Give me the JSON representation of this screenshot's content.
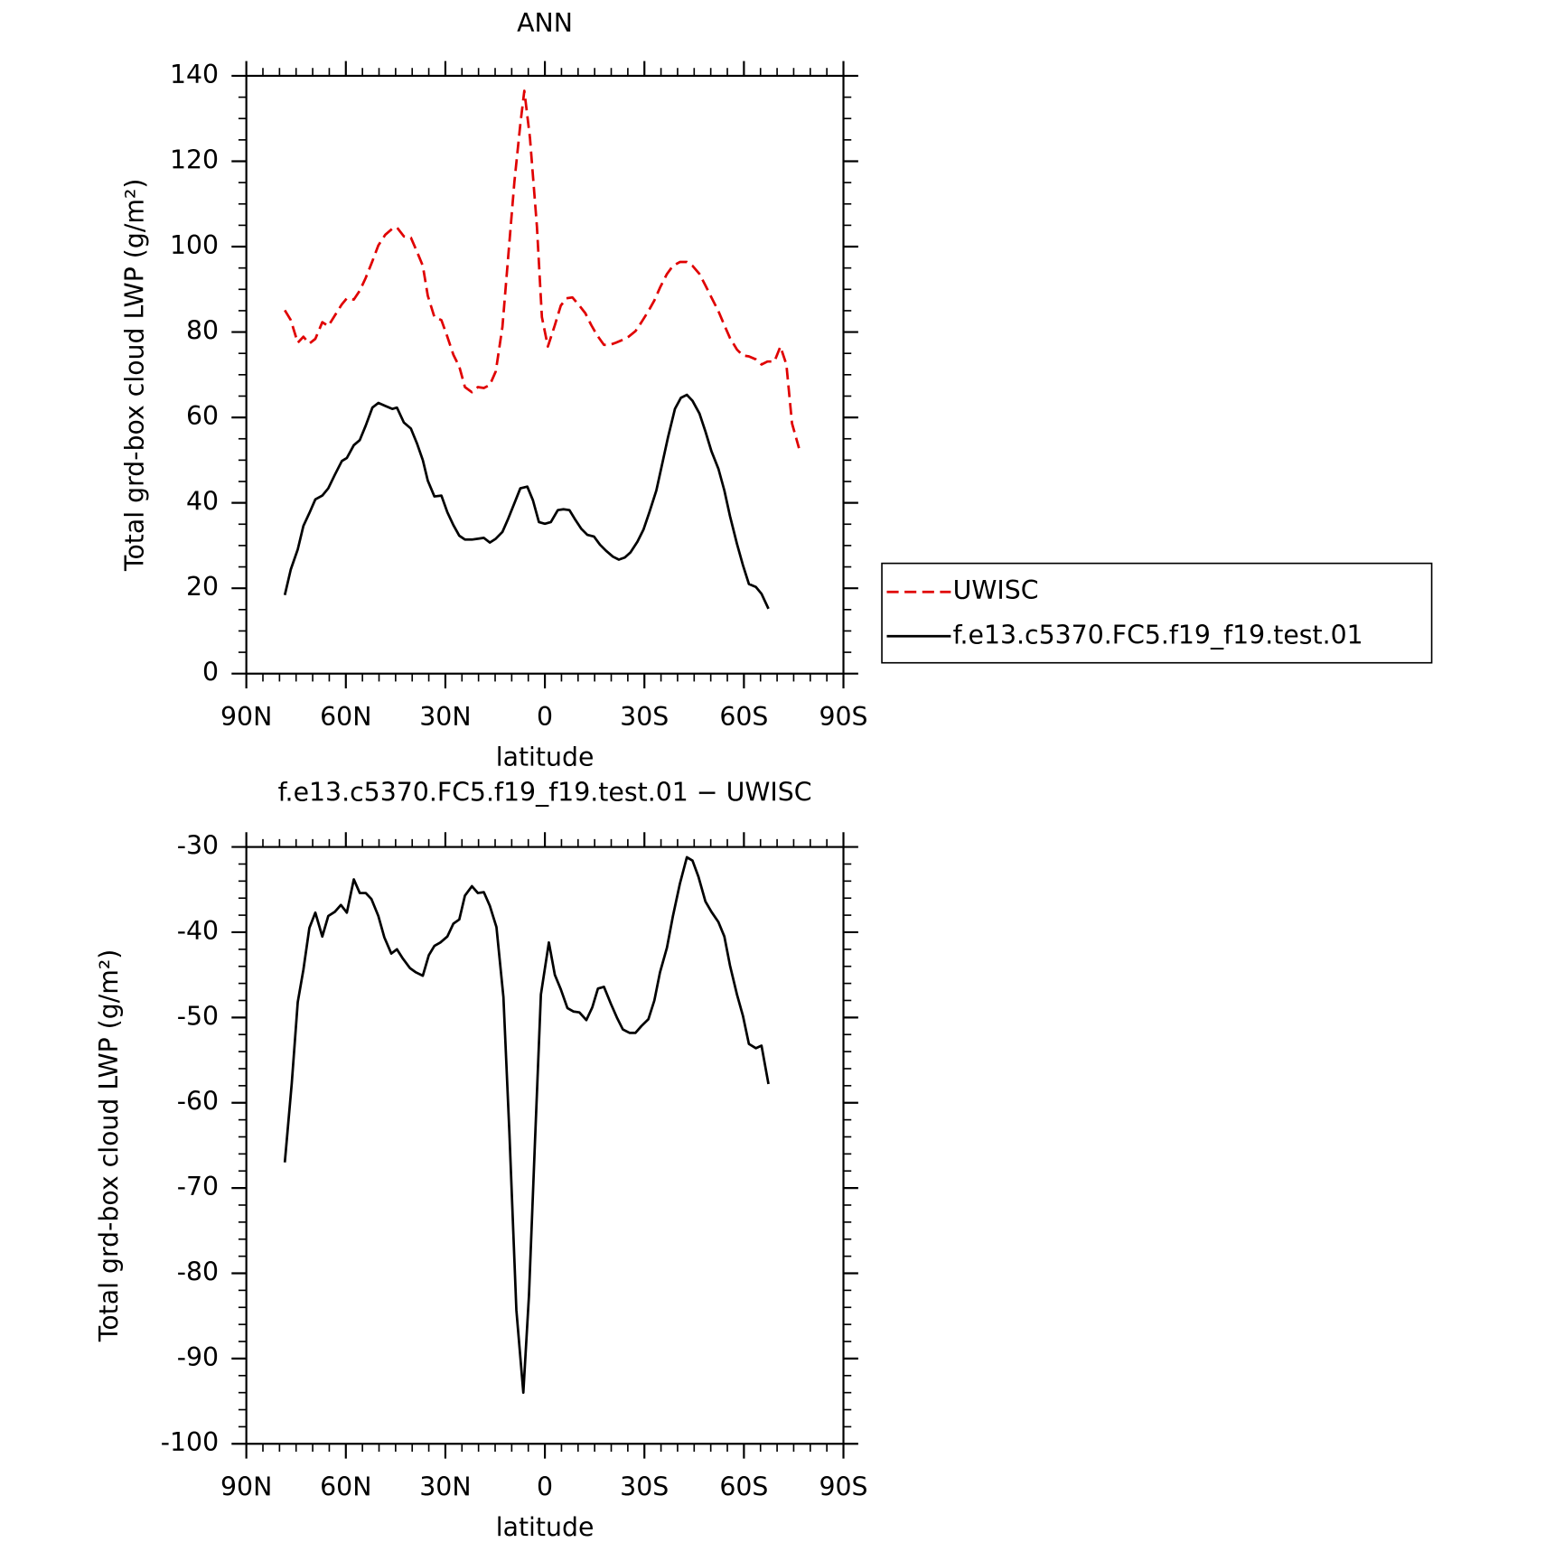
{
  "chart_data": [
    {
      "type": "line",
      "title": "ANN",
      "x_label": "latitude",
      "y_label": "Total grd-box cloud LWP (g/m²)",
      "xlim": [
        90,
        -90
      ],
      "xticks": [
        {
          "value": 90,
          "label": "90N"
        },
        {
          "value": 60,
          "label": "60N"
        },
        {
          "value": 30,
          "label": "30N"
        },
        0,
        {
          "value": -30,
          "label": "30S"
        },
        {
          "value": -60,
          "label": "60S"
        },
        {
          "value": -90,
          "label": "90S"
        }
      ],
      "ylim": [
        0,
        140
      ],
      "yticks": [
        0,
        20,
        40,
        60,
        80,
        100,
        120,
        140
      ],
      "legend": "right",
      "series": [
        {
          "name": "UWISC",
          "color": "#e00000",
          "dash": "dashed",
          "x": [
            78.4,
            76.6,
            74.5,
            72.8,
            71,
            69.2,
            67.1,
            65.3,
            63.3,
            61.2,
            59.7,
            57.6,
            55.8,
            54,
            52,
            50.2,
            48.1,
            46,
            44.6,
            42.5,
            40.4,
            38.6,
            36.8,
            35.3,
            33.3,
            31.2,
            29.4,
            27.6,
            25.8,
            24.1,
            22,
            20.2,
            18.4,
            16.6,
            14.8,
            12.8,
            11,
            9.2,
            7.4,
            6.2,
            4.5,
            2.4,
            0.9,
            -0.9,
            -3,
            -4.8,
            -6.5,
            -8.3,
            -10.4,
            -12.2,
            -14,
            -15.7,
            -17.8,
            -19.6,
            -21.4,
            -23.5,
            -25.2,
            -27.3,
            -29.1,
            -31.2,
            -33,
            -34.7,
            -36.8,
            -38.6,
            -40.7,
            -42.8,
            -44.5,
            -46.6,
            -48.4,
            -50.2,
            -52.3,
            -54.1,
            -55.8,
            -57.9,
            -59.7,
            -61.5,
            -63.6,
            -65.3,
            -67.1,
            -69.2,
            -71,
            -72.8,
            -74.5,
            -76.6
          ],
          "values": [
            85.1,
            82.8,
            77.5,
            78.9,
            77.3,
            78.4,
            82.3,
            81.4,
            83.9,
            86.5,
            87.9,
            87.6,
            89.7,
            92.7,
            96.6,
            100.3,
            102.8,
            104.2,
            104.5,
            102.4,
            102.1,
            98.9,
            95.5,
            88.5,
            83.5,
            82.8,
            78.9,
            74.7,
            71.9,
            67.1,
            65.9,
            67.1,
            66.9,
            67.6,
            70.8,
            81.2,
            98.2,
            115.1,
            128.7,
            136.5,
            125.5,
            104.7,
            83.5,
            76.6,
            81.6,
            86.2,
            87.9,
            88.1,
            86.2,
            84.4,
            81.6,
            79.3,
            77,
            77,
            77.5,
            78.2,
            78.9,
            80.2,
            82.3,
            84.9,
            87.4,
            90.4,
            93.6,
            95.5,
            96.4,
            96.4,
            95.5,
            93.6,
            90.9,
            88.1,
            84.9,
            81.6,
            78.6,
            75.9,
            74.5,
            74.3,
            73.6,
            72.4,
            73.1,
            73.1,
            76.6,
            72.4,
            58.6,
            52.8
          ]
        },
        {
          "name": "f.e13.c5370.FC5.f19_f19.test.01",
          "color": "#000000",
          "dash": "solid",
          "x": [
            78.4,
            76.6,
            74.5,
            72.8,
            71,
            69.2,
            67.1,
            65.3,
            63.3,
            61.2,
            59.7,
            57.6,
            55.8,
            54,
            52,
            50.2,
            48.1,
            46,
            44.6,
            42.5,
            40.4,
            38.6,
            36.8,
            35.3,
            33.3,
            31.2,
            29.4,
            27.6,
            25.8,
            24.1,
            22,
            20.2,
            18.4,
            16.6,
            14.8,
            12.8,
            11,
            9.2,
            7.4,
            5.3,
            3.6,
            1.8,
            0,
            -1.8,
            -3.9,
            -5.6,
            -7.4,
            -9.2,
            -11,
            -12.8,
            -14.8,
            -16.6,
            -18.4,
            -20.5,
            -22.3,
            -24.1,
            -25.8,
            -27.9,
            -29.7,
            -31.5,
            -33.6,
            -35.3,
            -37.1,
            -39.2,
            -41,
            -42.8,
            -44.5,
            -46.6,
            -48.4,
            -50.2,
            -52.3,
            -54.1,
            -55.8,
            -57.9,
            -59.7,
            -61.5,
            -63.6,
            -65.3,
            -67.4
          ],
          "values": [
            18.4,
            24.4,
            29.1,
            34.6,
            37.6,
            40.8,
            41.7,
            43.4,
            46.6,
            49.8,
            50.5,
            53.5,
            54.7,
            58.1,
            62.3,
            63.4,
            62.7,
            62,
            62.3,
            58.8,
            57.4,
            54,
            50,
            45.2,
            41.5,
            41.7,
            37.8,
            34.8,
            32.3,
            31.4,
            31.4,
            31.6,
            31.8,
            30.7,
            31.6,
            33.2,
            36.4,
            39.9,
            43.4,
            43.8,
            40.6,
            35.5,
            35.1,
            35.5,
            38.3,
            38.5,
            38.3,
            36,
            33.9,
            32.5,
            32.1,
            30.2,
            28.8,
            27.4,
            26.7,
            27.2,
            28.4,
            30.9,
            33.7,
            37.8,
            42.9,
            48.9,
            55.3,
            62,
            64.6,
            65.3,
            63.9,
            60.9,
            56.7,
            52.1,
            48,
            42.9,
            36.9,
            30.4,
            25.4,
            21,
            20.3,
            18.7,
            15.2
          ]
        }
      ]
    },
    {
      "type": "line",
      "title": "f.e13.c5370.FC5.f19_f19.test.01 − UWISC",
      "x_label": "latitude",
      "y_label": "Total grd-box cloud LWP (g/m²)",
      "xlim": [
        90,
        -90
      ],
      "xticks": [
        {
          "value": 90,
          "label": "90N"
        },
        {
          "value": 60,
          "label": "60N"
        },
        {
          "value": 30,
          "label": "30N"
        },
        0,
        {
          "value": -30,
          "label": "30S"
        },
        {
          "value": -60,
          "label": "60S"
        },
        {
          "value": -90,
          "label": "90S"
        }
      ],
      "ylim": [
        -100,
        -30
      ],
      "yticks": [
        -100,
        -90,
        -80,
        -70,
        -60,
        -50,
        -40,
        -30
      ],
      "series": [
        {
          "color": "#000000",
          "dash": "solid",
          "x": [
            78.4,
            76.3,
            74.5,
            72.8,
            71,
            69.2,
            67.1,
            65.3,
            63.3,
            61.5,
            59.7,
            57.6,
            55.8,
            54,
            52.3,
            50.2,
            48.4,
            46.3,
            44.6,
            42.8,
            40.7,
            38.9,
            36.8,
            35,
            33.3,
            31.5,
            29.4,
            27.6,
            25.8,
            24.1,
            22,
            20.2,
            18.4,
            16.6,
            14.6,
            12.5,
            10.7,
            8.6,
            6.5,
            4.8,
            3,
            1.2,
            -1.2,
            -3,
            -4.8,
            -6.8,
            -8.6,
            -10.4,
            -12.5,
            -14.3,
            -16,
            -17.8,
            -19.9,
            -21.7,
            -23.5,
            -25.5,
            -27.3,
            -29.1,
            -31.2,
            -33,
            -34.7,
            -36.8,
            -38.6,
            -40.7,
            -42.8,
            -44.5,
            -46.3,
            -48.4,
            -50.2,
            -52.3,
            -54.1,
            -55.8,
            -57.9,
            -59.7,
            -61.5,
            -63.6,
            -65.3,
            -67.4
          ],
          "values": [
            -67,
            -57.7,
            -48.2,
            -44.4,
            -39.5,
            -37.7,
            -40.5,
            -38.1,
            -37.6,
            -36.8,
            -37.7,
            -33.8,
            -35.4,
            -35.4,
            -36.1,
            -38.1,
            -40.6,
            -42.5,
            -42,
            -43.1,
            -44.2,
            -44.7,
            -45.1,
            -42.7,
            -41.6,
            -41.2,
            -40.5,
            -39,
            -38.5,
            -35.7,
            -34.6,
            -35.4,
            -35.3,
            -36.9,
            -39.4,
            -47.6,
            -63.5,
            -84.3,
            -94,
            -82.6,
            -64.7,
            -47.3,
            -41.2,
            -45,
            -46.7,
            -48.9,
            -49.3,
            -49.4,
            -50.3,
            -48.8,
            -46.6,
            -46.4,
            -48.4,
            -50,
            -51.4,
            -51.8,
            -51.8,
            -51,
            -50.2,
            -48,
            -44.7,
            -41.8,
            -38.1,
            -34.3,
            -31.2,
            -31.6,
            -33.5,
            -36.4,
            -37.6,
            -38.8,
            -40.5,
            -43.9,
            -47.3,
            -49.8,
            -53.1,
            -53.6,
            -53.3,
            -57.8
          ]
        }
      ]
    }
  ]
}
